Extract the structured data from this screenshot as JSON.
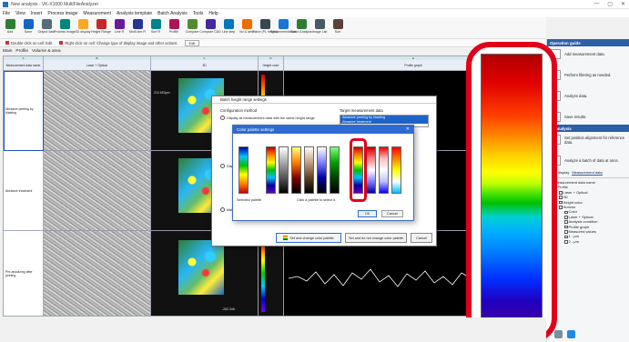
{
  "window": {
    "title": "New analysis - VK-X1000 MultiFileAnalyzer",
    "controls": [
      "—",
      "▢",
      "✕"
    ]
  },
  "menu": [
    "File",
    "View",
    "Insert",
    "Process image",
    "Measurement",
    "Analysis template",
    "Batch Analysis",
    "Tools",
    "Help"
  ],
  "ribbon": [
    {
      "label": "Add",
      "color": "#2e7d32"
    },
    {
      "label": "Save",
      "color": "#1565c0"
    },
    {
      "label": "Output data",
      "color": "#546e7a"
    },
    {
      "label": "Process image",
      "color": "#00897b"
    },
    {
      "label": "3D display",
      "color": "#f9a825"
    },
    {
      "label": "Height Range",
      "color": "#c62828"
    },
    {
      "label": "Line R",
      "color": "#6a1b9a"
    },
    {
      "label": "Multi-line R",
      "color": "#283593"
    },
    {
      "label": "Surf R",
      "color": "#00838f"
    },
    {
      "label": "Profile",
      "color": "#ad1457"
    },
    {
      "label": "Compare",
      "color": "#558b2f"
    },
    {
      "label": "Compare CAD",
      "color": "#4527a0"
    },
    {
      "label": "Line step",
      "color": "#0277bd"
    },
    {
      "label": "Vol & area",
      "color": "#ef6c00"
    },
    {
      "label": "Plane (PL height)",
      "color": "#37474f"
    },
    {
      "label": "Recommendation",
      "color": "#1976d2"
    },
    {
      "label": "Batch Analysis",
      "color": "#2e7d32"
    },
    {
      "label": "Image List",
      "color": "#455a64"
    },
    {
      "label": "Sort",
      "color": "#5d4037"
    }
  ],
  "subbar": {
    "double_click": "Double click on cell: Edit",
    "right_click": "Right click on cell: Change type of display image and other actions",
    "edit_button": "Edit"
  },
  "sheet_tabs": [
    "Main",
    "Profile",
    "Volume & area"
  ],
  "table": {
    "columns": [
      "A",
      "B",
      "C",
      "D",
      "E"
    ],
    "headers": [
      "Measurement data name",
      "Laser + Optical",
      "3D",
      "Height color",
      "Profile graph"
    ],
    "rows": [
      {
        "name": "Abrasive peeling by blasting"
      },
      {
        "name": "Abrasive treatment"
      },
      {
        "name": "Pre-anodizing after peeling"
      }
    ],
    "top_value": "212.653μm",
    "bottom_value": "-262.346"
  },
  "batch_dialog": {
    "title": "Batch height range settings",
    "config_label": "Configuration method",
    "target_label": "Target measurement data",
    "targets": [
      "Abrasive peeling by blasting",
      "Abrasive treatment"
    ],
    "option1": "Display all measurement data with the same height range",
    "option2": "Display",
    "option3": "Mat",
    "btn_set_change": "Set and change color palette",
    "btn_set_nochange": "Set and do not change color palette",
    "btn_cancel": "Cancel"
  },
  "palette_dialog": {
    "title": "Color palette settings",
    "selected_label": "Selected palette",
    "click_hint": "Click a palette to select it.",
    "ok": "OK",
    "cancel": "Cancel"
  },
  "guide": {
    "operation_title": "Operation guide",
    "steps": [
      "Add measurement data.",
      "Perform filtering as needed.",
      "Analyze data.",
      "Save results."
    ],
    "batch_title": "ch analysis",
    "batch_steps": [
      "Set position alignment for reference data.",
      "Analyze a batch of data at once."
    ],
    "tabs": [
      "umn display",
      "Measurement data"
    ],
    "tree": {
      "root": "Measurement data name",
      "profile": "Profile",
      "items": [
        "Laser + Optical",
        "3D",
        "Height color"
      ],
      "horizon": "Horizon",
      "horizon_items": [
        "Color",
        "Laser + Optical",
        "Analysis condition",
        "Profile graph",
        "Measured values",
        "1 - μm",
        "2 - μm"
      ]
    }
  }
}
